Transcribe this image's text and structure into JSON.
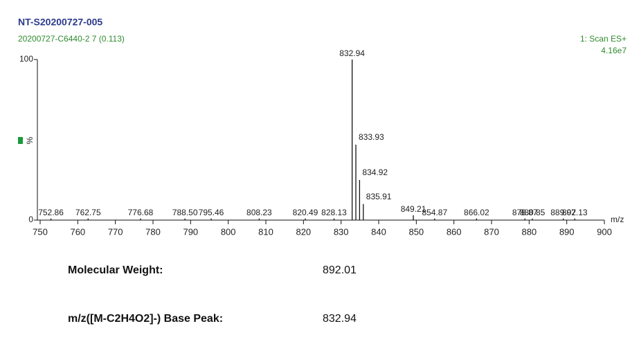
{
  "chart_data": {
    "type": "stem",
    "title": "NT-S20200727-005",
    "subtitle": "20200727-C6440-2 7 (0.113)",
    "scan_label": "1: Scan ES+",
    "intensity_label": "4.16e7",
    "ylabel": "%",
    "xlabel": "m/z",
    "color": "#111111",
    "x": [
      752.86,
      762.75,
      776.68,
      788.5,
      795.46,
      808.23,
      820.49,
      828.13,
      832.94,
      833.93,
      834.92,
      835.91,
      849.21,
      854.87,
      866.02,
      878.87,
      880.85,
      889.07,
      892.13
    ],
    "peak_labels": [
      "752.86",
      "762.75",
      "776.68",
      "788.50",
      "795.46",
      "808.23",
      "820.49",
      "828.13",
      "832.94",
      "833.93",
      "834.92",
      "835.91",
      "849.21",
      "854.87",
      "866.02",
      "878.87",
      "880.85",
      "889.07",
      "892.13"
    ],
    "values": [
      1,
      1,
      1,
      1,
      1,
      1,
      1,
      1,
      100,
      47,
      25,
      10,
      3,
      1,
      1,
      1,
      1,
      1,
      1
    ],
    "xlim": [
      750,
      900
    ],
    "xticks": [
      750,
      760,
      770,
      780,
      790,
      800,
      810,
      820,
      830,
      840,
      850,
      860,
      870,
      880,
      890,
      900
    ],
    "ylim": [
      0,
      100
    ],
    "yticks": [
      0,
      100
    ]
  },
  "info": [
    {
      "label": "Molecular Weight:",
      "value": "892.01"
    },
    {
      "label": "m/z([M-C2H4O2]-) Base Peak:",
      "value": "832.94"
    }
  ]
}
